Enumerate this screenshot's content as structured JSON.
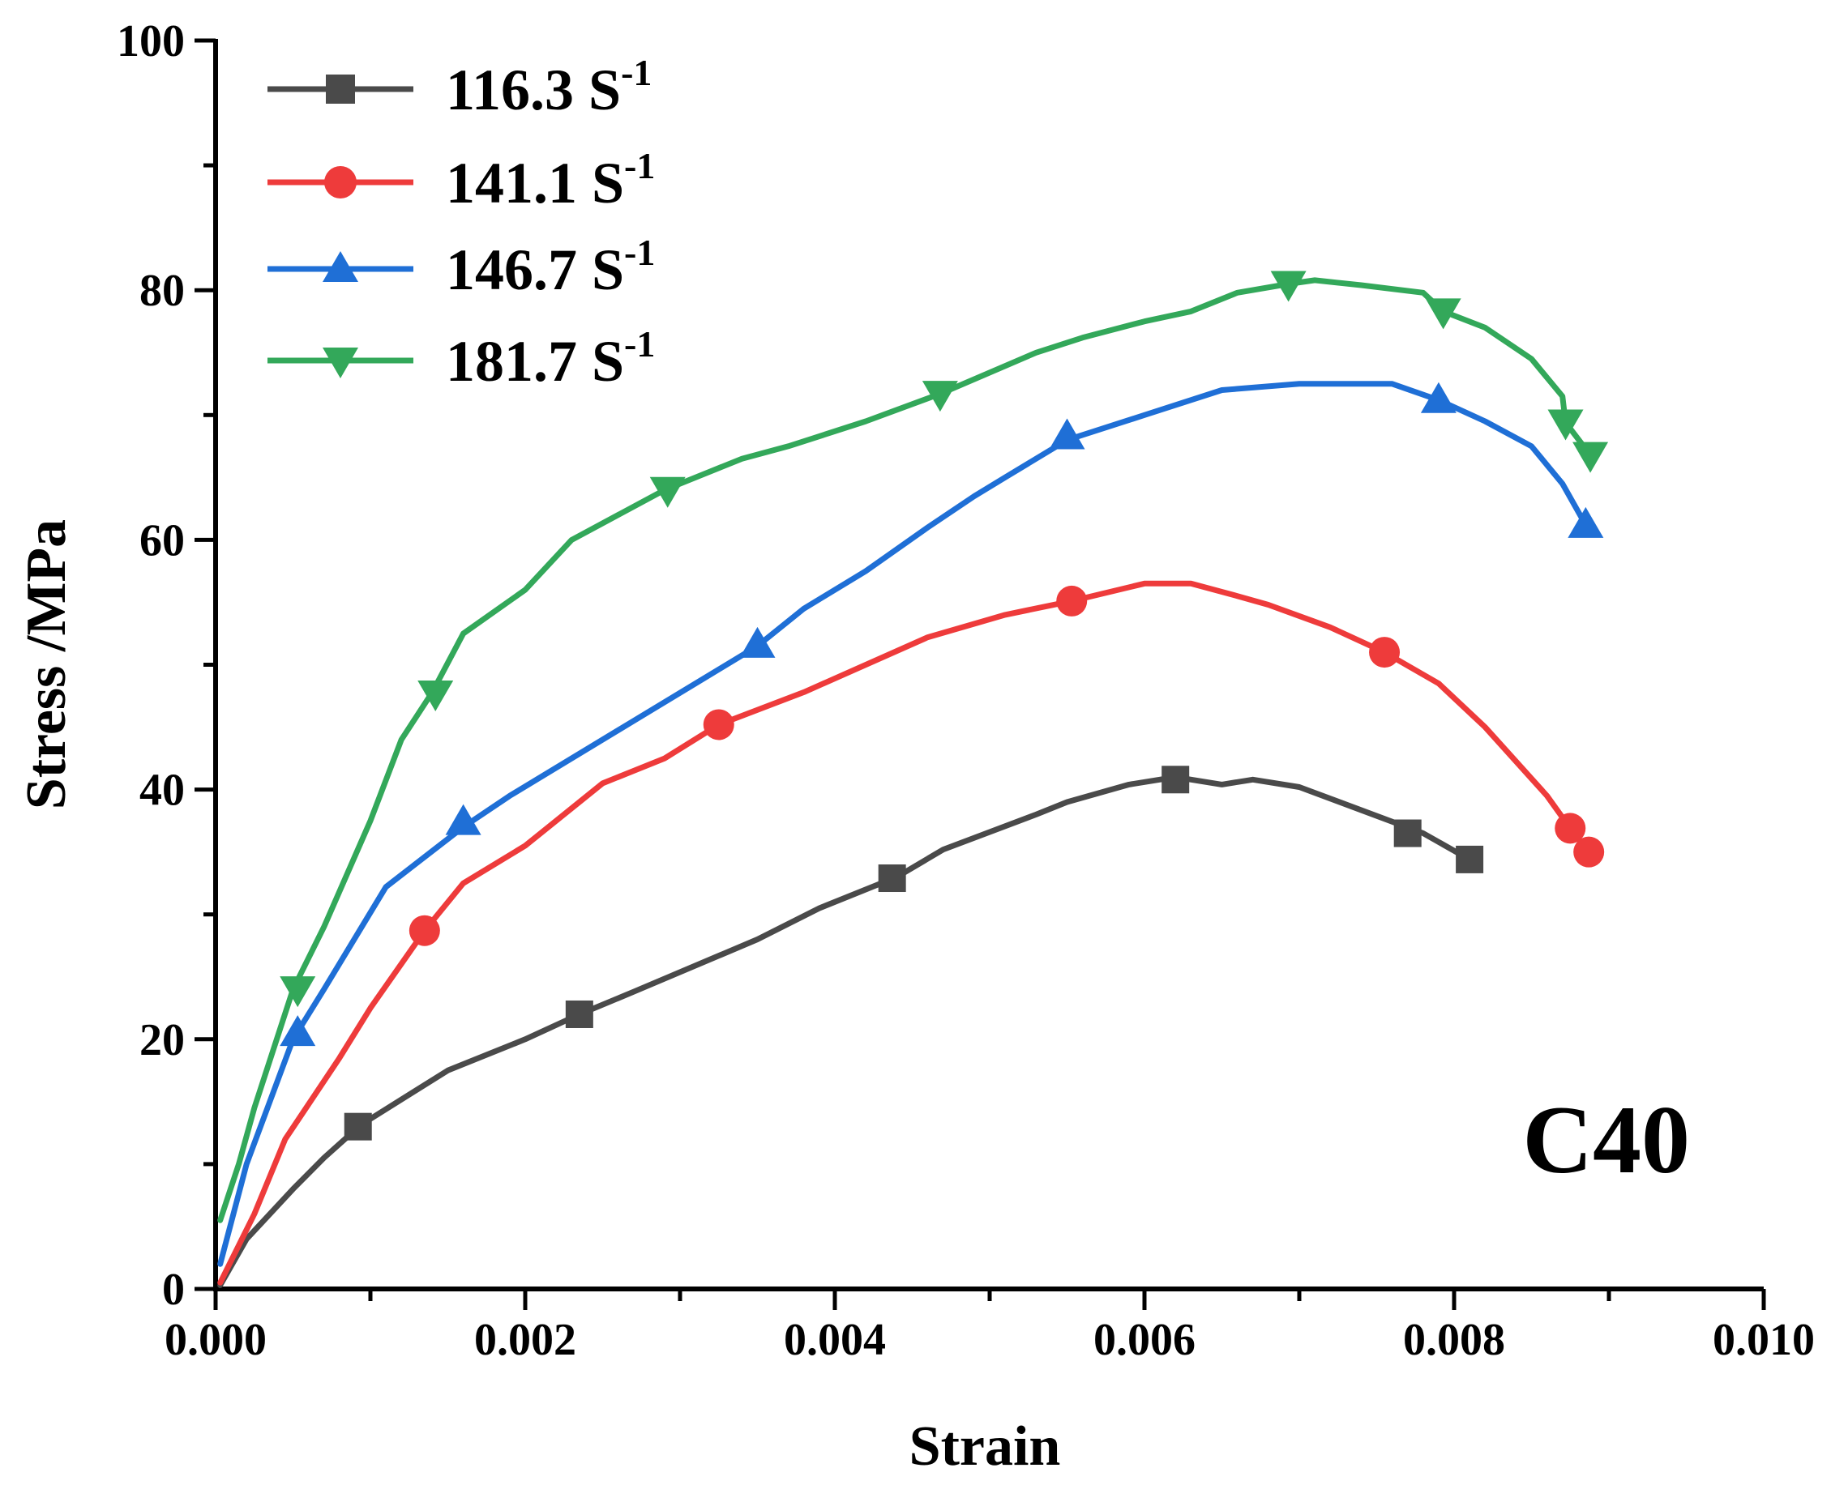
{
  "chart_data": {
    "type": "line",
    "title": "",
    "xlabel": "Strain",
    "ylabel": "Stress /MPa",
    "xlim": [
      0.0,
      0.01
    ],
    "ylim": [
      0,
      100
    ],
    "x_ticks": [
      "0.000",
      "0.002",
      "0.004",
      "0.006",
      "0.008",
      "0.010"
    ],
    "y_ticks": [
      "0",
      "20",
      "40",
      "60",
      "80",
      "100"
    ],
    "annotation": "C40",
    "legend_position": "top-left",
    "series": [
      {
        "name": "116.3",
        "unit": "S",
        "exponent": "-1",
        "color": "#4a4a4a",
        "marker": "square",
        "points": [
          [
            3e-05,
            0.3
          ],
          [
            0.0002,
            4
          ],
          [
            0.0005,
            8
          ],
          [
            0.0007,
            10.5
          ],
          [
            0.00088,
            12.5
          ],
          [
            0.00092,
            13
          ],
          [
            0.0015,
            17.5
          ],
          [
            0.002,
            20
          ],
          [
            0.00235,
            22
          ],
          [
            0.0027,
            23.8
          ],
          [
            0.0035,
            28
          ],
          [
            0.0039,
            30.5
          ],
          [
            0.0044,
            33
          ],
          [
            0.0047,
            35.2
          ],
          [
            0.0053,
            38
          ],
          [
            0.0055,
            39
          ],
          [
            0.0059,
            40.4
          ],
          [
            0.0062,
            41
          ],
          [
            0.0065,
            40.4
          ],
          [
            0.0067,
            40.8
          ],
          [
            0.007,
            40.2
          ],
          [
            0.0078,
            36.5
          ],
          [
            0.0081,
            34.4
          ]
        ],
        "markers": [
          [
            0.00092,
            13
          ],
          [
            0.00235,
            22
          ],
          [
            0.00437,
            32.9
          ],
          [
            0.0062,
            40.8
          ],
          [
            0.0077,
            36.5
          ],
          [
            0.0081,
            34.4
          ]
        ]
      },
      {
        "name": "141.1",
        "unit": "S",
        "exponent": "-1",
        "color": "#ee3b3b",
        "marker": "circle",
        "points": [
          [
            3e-05,
            0.5
          ],
          [
            0.00025,
            6
          ],
          [
            0.00045,
            12
          ],
          [
            0.0008,
            18.5
          ],
          [
            0.001,
            22.5
          ],
          [
            0.00135,
            28.7
          ],
          [
            0.0016,
            32.5
          ],
          [
            0.002,
            35.5
          ],
          [
            0.0025,
            40.5
          ],
          [
            0.0027,
            41.5
          ],
          [
            0.0029,
            42.5
          ],
          [
            0.00325,
            45.2
          ],
          [
            0.0038,
            47.8
          ],
          [
            0.0046,
            52.2
          ],
          [
            0.0051,
            54
          ],
          [
            0.00553,
            55.1
          ],
          [
            0.006,
            56.5
          ],
          [
            0.0063,
            56.5
          ],
          [
            0.0066,
            55.5
          ],
          [
            0.0068,
            54.8
          ],
          [
            0.0072,
            53
          ],
          [
            0.00755,
            51
          ],
          [
            0.0079,
            48.5
          ],
          [
            0.0082,
            45
          ],
          [
            0.0086,
            39.5
          ],
          [
            0.00875,
            36.9
          ],
          [
            0.00887,
            35
          ]
        ],
        "markers": [
          [
            0.00135,
            28.7
          ],
          [
            0.00325,
            45.2
          ],
          [
            0.00553,
            55.1
          ],
          [
            0.00755,
            51
          ],
          [
            0.00875,
            36.9
          ],
          [
            0.00887,
            35
          ]
        ]
      },
      {
        "name": "146.7",
        "unit": "S",
        "exponent": "-1",
        "color": "#1f6fd6",
        "marker": "triangle-up",
        "points": [
          [
            3e-05,
            2
          ],
          [
            0.0002,
            10
          ],
          [
            0.0005,
            20
          ],
          [
            0.0007,
            24
          ],
          [
            0.0011,
            32.2
          ],
          [
            0.0016,
            37
          ],
          [
            0.0019,
            39.5
          ],
          [
            0.0031,
            48.5
          ],
          [
            0.0035,
            51.5
          ],
          [
            0.0038,
            54.5
          ],
          [
            0.0042,
            57.5
          ],
          [
            0.0046,
            61
          ],
          [
            0.0049,
            63.5
          ],
          [
            0.0051,
            65
          ],
          [
            0.0055,
            68
          ],
          [
            0.006,
            70
          ],
          [
            0.0065,
            72
          ],
          [
            0.007,
            72.5
          ],
          [
            0.0076,
            72.5
          ],
          [
            0.0079,
            71.2
          ],
          [
            0.0082,
            69.5
          ],
          [
            0.0085,
            67.5
          ],
          [
            0.0087,
            64.5
          ],
          [
            0.00885,
            61.2
          ]
        ],
        "markers": [
          [
            0.00053,
            20.5
          ],
          [
            0.0016,
            37.4
          ],
          [
            0.0035,
            51.6
          ],
          [
            0.0055,
            68.3
          ],
          [
            0.0079,
            71.2
          ],
          [
            0.00885,
            61.2
          ]
        ]
      },
      {
        "name": "181.7",
        "unit": "S",
        "exponent": "-1",
        "color": "#33a85a",
        "marker": "triangle-down",
        "points": [
          [
            3e-05,
            5.5
          ],
          [
            0.00015,
            10
          ],
          [
            0.00025,
            14.5
          ],
          [
            0.0005,
            24
          ],
          [
            0.0007,
            29
          ],
          [
            0.001,
            37.5
          ],
          [
            0.0012,
            44
          ],
          [
            0.0014,
            47.8
          ],
          [
            0.0016,
            52.5
          ],
          [
            0.002,
            56
          ],
          [
            0.0023,
            60
          ],
          [
            0.0029,
            64
          ],
          [
            0.0032,
            65.5
          ],
          [
            0.0034,
            66.5
          ],
          [
            0.0037,
            67.5
          ],
          [
            0.0042,
            69.5
          ],
          [
            0.00468,
            71.7
          ],
          [
            0.0053,
            75
          ],
          [
            0.0056,
            76.2
          ],
          [
            0.006,
            77.5
          ],
          [
            0.0063,
            78.3
          ],
          [
            0.0066,
            79.8
          ],
          [
            0.00693,
            80.5
          ],
          [
            0.0071,
            80.8
          ],
          [
            0.0074,
            80.4
          ],
          [
            0.0078,
            79.8
          ],
          [
            0.00793,
            78.3
          ],
          [
            0.0082,
            77
          ],
          [
            0.0085,
            74.5
          ],
          [
            0.0087,
            71.5
          ],
          [
            0.00872,
            69.4
          ],
          [
            0.00888,
            66.8
          ]
        ],
        "markers": [
          [
            0.00053,
            24
          ],
          [
            0.00142,
            47.7
          ],
          [
            0.00292,
            64
          ],
          [
            0.00468,
            71.7
          ],
          [
            0.00693,
            80.5
          ],
          [
            0.00793,
            78.3
          ],
          [
            0.00872,
            69.4
          ],
          [
            0.00888,
            66.8
          ]
        ]
      }
    ]
  }
}
